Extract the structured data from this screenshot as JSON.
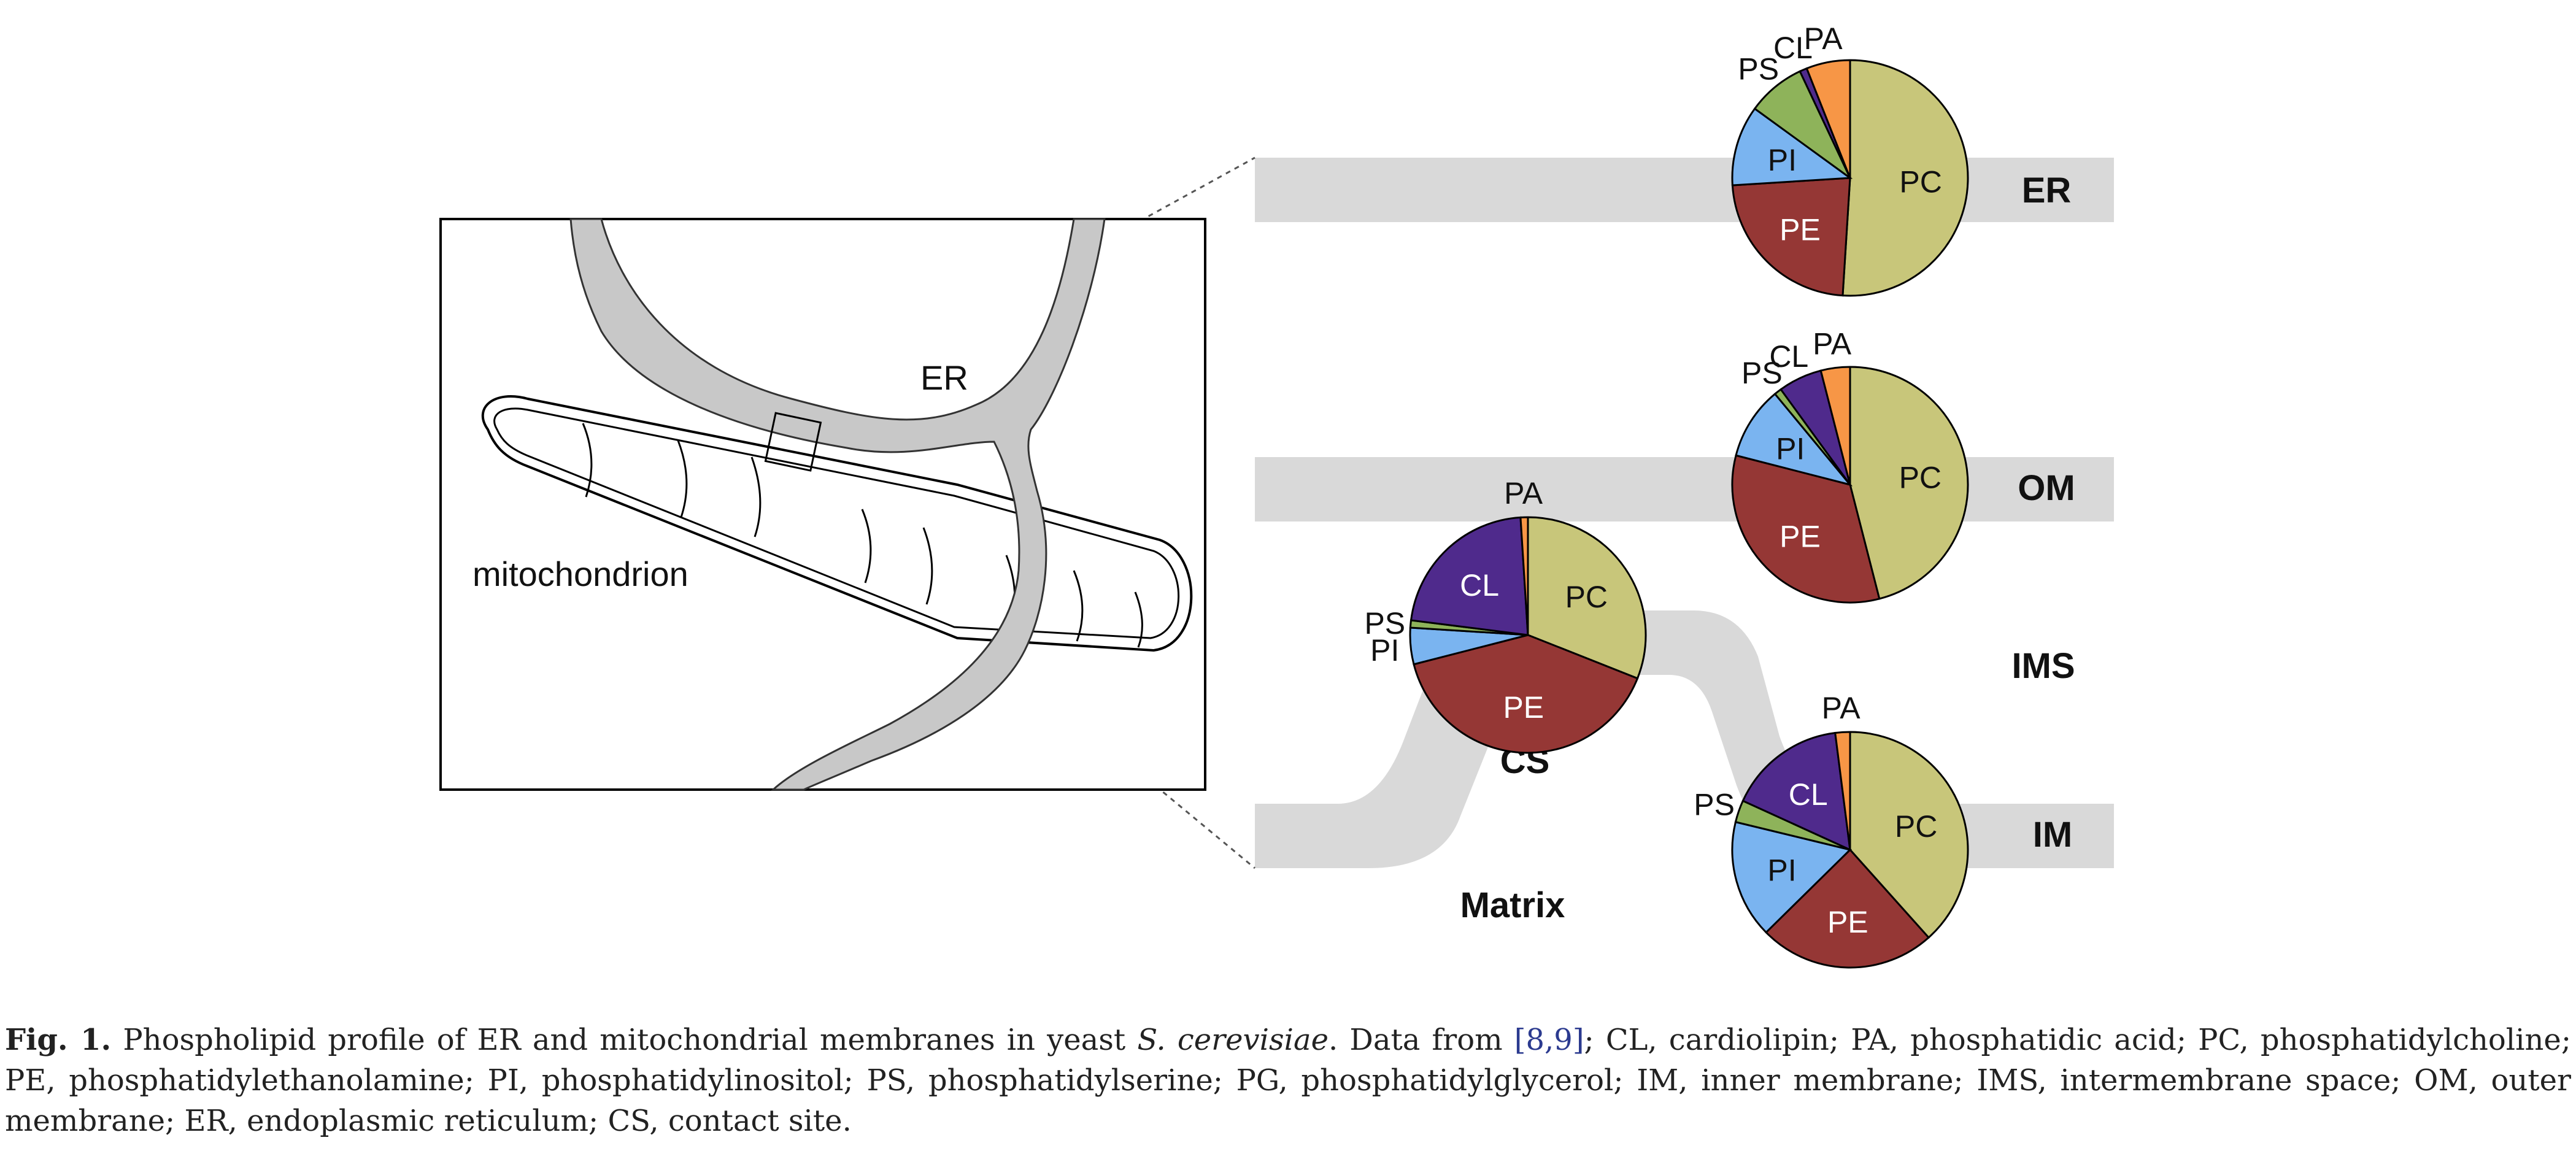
{
  "diagram": {
    "er_label": "ER",
    "mito_label": "mitochondrion",
    "bands": {
      "er": "ER",
      "om": "OM",
      "ims": "IMS",
      "im": "IM",
      "cs": "CS",
      "matrix": "Matrix"
    }
  },
  "chart_data": [
    {
      "type": "pie",
      "name": "ER",
      "slices": [
        {
          "label": "PC",
          "value": 51,
          "color": "#c8c67a"
        },
        {
          "label": "PE",
          "value": 23,
          "color": "#953735"
        },
        {
          "label": "PI",
          "value": 11,
          "color": "#7ab4f0"
        },
        {
          "label": "PS",
          "value": 8,
          "color": "#8eb35a"
        },
        {
          "label": "CL",
          "value": 1,
          "color": "#4f2a8c"
        },
        {
          "label": "PA",
          "value": 6,
          "color": "#f79646"
        }
      ]
    },
    {
      "type": "pie",
      "name": "OM",
      "slices": [
        {
          "label": "PC",
          "value": 46,
          "color": "#c8c67a"
        },
        {
          "label": "PE",
          "value": 33,
          "color": "#953735"
        },
        {
          "label": "PI",
          "value": 10,
          "color": "#7ab4f0"
        },
        {
          "label": "PS",
          "value": 1,
          "color": "#8eb35a"
        },
        {
          "label": "CL",
          "value": 6,
          "color": "#4f2a8c"
        },
        {
          "label": "PA",
          "value": 4,
          "color": "#f79646"
        }
      ]
    },
    {
      "type": "pie",
      "name": "CS",
      "slices": [
        {
          "label": "PC",
          "value": 31,
          "color": "#c8c67a"
        },
        {
          "label": "PE",
          "value": 40,
          "color": "#953735"
        },
        {
          "label": "PI",
          "value": 5,
          "color": "#7ab4f0"
        },
        {
          "label": "PS",
          "value": 1,
          "color": "#8eb35a"
        },
        {
          "label": "CL",
          "value": 22,
          "color": "#4f2a8c"
        },
        {
          "label": "PA",
          "value": 1,
          "color": "#f79646"
        }
      ]
    },
    {
      "type": "pie",
      "name": "IM",
      "slices": [
        {
          "label": "PC",
          "value": 38,
          "color": "#c8c67a"
        },
        {
          "label": "PE",
          "value": 24,
          "color": "#953735"
        },
        {
          "label": "PI",
          "value": 16,
          "color": "#7ab4f0"
        },
        {
          "label": "PS",
          "value": 3,
          "color": "#8eb35a"
        },
        {
          "label": "CL",
          "value": 16,
          "color": "#4f2a8c"
        },
        {
          "label": "PA",
          "value": 2,
          "color": "#f79646"
        }
      ]
    }
  ],
  "caption": {
    "fig": "Fig. 1.",
    "text1": " Phospholipid profile of ER and mitochondrial membranes in yeast ",
    "species": "S. cerevisiae",
    "text2": ". Data from ",
    "refs": "[8,9]",
    "text3": "; CL, cardiolipin; PA, phosphatidic acid; PC, phosphatidylcholine; PE, phosphatidylethanolamine; PI, phosphatidylinositol; PS, phosphatidylserine; PG, phosphatidylglycerol; IM, inner membrane; IMS, intermembrane space; OM, outer membrane; ER, endoplasmic reticulum; CS, contact site."
  }
}
